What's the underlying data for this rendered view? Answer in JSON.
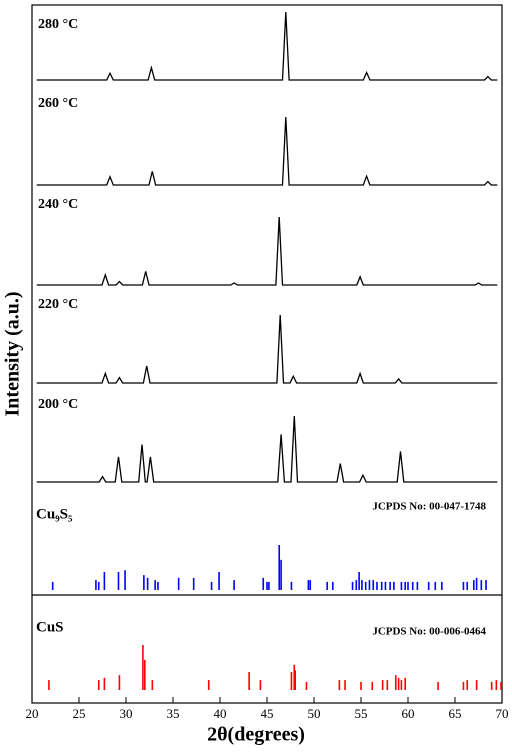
{
  "chart_data": {
    "type": "xrd",
    "xlabel": "2θ(degrees)",
    "ylabel": "Intensity (a.u.)",
    "xlim": [
      20,
      70
    ],
    "xticks": [
      20,
      25,
      30,
      35,
      40,
      45,
      50,
      55,
      60,
      65,
      70
    ],
    "series": [
      {
        "name": "280 °C",
        "color": "#000000",
        "x": [
          20.5,
          27.95,
          28.3,
          28.65,
          32.35,
          32.7,
          33.05,
          46.65,
          47.0,
          47.35,
          55.25,
          55.6,
          55.95,
          68.15,
          68.5,
          68.85,
          69.5
        ],
        "values": [
          0,
          0,
          10,
          0,
          0,
          18,
          0,
          0,
          100,
          0,
          0,
          11,
          0,
          0,
          5,
          0,
          0
        ]
      },
      {
        "name": "260 °C",
        "color": "#000000",
        "x": [
          20.5,
          27.95,
          28.3,
          28.65,
          32.45,
          32.8,
          33.15,
          46.65,
          47.0,
          47.35,
          55.25,
          55.6,
          55.95,
          68.15,
          68.5,
          68.85,
          69.5
        ],
        "values": [
          0,
          0,
          12,
          0,
          0,
          20,
          0,
          0,
          100,
          0,
          0,
          13,
          0,
          0,
          5,
          0,
          0
        ]
      },
      {
        "name": "240 °C",
        "color": "#000000",
        "x": [
          20.5,
          27.45,
          27.8,
          28.15,
          28.95,
          29.3,
          29.65,
          31.75,
          32.1,
          32.45,
          41.15,
          41.5,
          41.85,
          45.95,
          46.3,
          46.65,
          54.55,
          54.9,
          55.25,
          67.15,
          67.5,
          67.85,
          69.5
        ],
        "values": [
          0,
          0,
          15,
          0,
          0,
          5,
          0,
          0,
          20,
          0,
          0,
          3,
          0,
          0,
          100,
          0,
          0,
          12,
          0,
          0,
          3,
          0,
          0
        ]
      },
      {
        "name": "220 °C",
        "color": "#000000",
        "x": [
          20.5,
          27.45,
          27.8,
          28.15,
          28.95,
          29.3,
          29.65,
          31.85,
          32.2,
          32.55,
          46.05,
          46.4,
          46.75,
          47.45,
          47.8,
          48.15,
          54.55,
          54.9,
          55.25,
          58.65,
          59.0,
          59.35,
          69.5
        ],
        "values": [
          0,
          0,
          14,
          0,
          0,
          8,
          0,
          0,
          25,
          0,
          0,
          100,
          0,
          0,
          10,
          0,
          0,
          14,
          0,
          0,
          6,
          0,
          0
        ]
      },
      {
        "name": "200 °C",
        "color": "#000000",
        "x": [
          20.5,
          27.15,
          27.5,
          27.85,
          28.85,
          29.2,
          29.55,
          31.35,
          31.7,
          32.05,
          32.25,
          32.6,
          32.95,
          46.15,
          46.5,
          46.85,
          47.55,
          47.9,
          48.25,
          52.45,
          52.8,
          53.15,
          54.85,
          55.2,
          55.55,
          58.85,
          59.2,
          59.55,
          69.5
        ],
        "values": [
          0,
          0,
          8,
          0,
          0,
          37,
          0,
          0,
          55,
          0,
          0,
          37,
          0,
          0,
          70,
          0,
          0,
          97,
          0,
          0,
          27,
          0,
          0,
          10,
          0,
          0,
          45,
          0,
          0
        ]
      }
    ],
    "references": [
      {
        "name": "Cu₉S₅",
        "label": "JCPDS No: 00-047-1748",
        "color": "#0000ff",
        "positions": [
          22.2,
          26.8,
          27.1,
          27.7,
          29.2,
          29.9,
          31.9,
          32.3,
          33.1,
          33.4,
          35.6,
          37.2,
          39.1,
          39.9,
          41.5,
          44.6,
          45.0,
          45.2,
          46.3,
          46.5,
          47.6,
          49.4,
          49.6,
          51.4,
          52.0,
          54.1,
          54.5,
          54.8,
          55.1,
          55.5,
          55.9,
          56.3,
          56.7,
          57.2,
          57.6,
          58.1,
          58.5,
          59.3,
          59.7,
          60.0,
          60.5,
          61.0,
          62.2,
          62.9,
          63.6,
          65.9,
          66.3,
          67.0,
          67.3,
          67.8,
          68.3
        ],
        "values": [
          18,
          22,
          18,
          40,
          40,
          44,
          33,
          27,
          22,
          18,
          27,
          27,
          18,
          40,
          22,
          27,
          18,
          18,
          100,
          67,
          18,
          22,
          22,
          18,
          18,
          18,
          22,
          40,
          22,
          18,
          22,
          22,
          18,
          18,
          18,
          18,
          18,
          18,
          18,
          18,
          18,
          18,
          18,
          18,
          18,
          18,
          18,
          22,
          27,
          22,
          22
        ]
      },
      {
        "name": "CuS",
        "label": "JCPDS No: 00-006-0464",
        "color": "#ff0000",
        "positions": [
          21.8,
          27.1,
          27.7,
          29.3,
          31.8,
          32.0,
          32.8,
          38.8,
          43.1,
          44.3,
          47.6,
          47.9,
          48.0,
          49.2,
          52.7,
          53.3,
          55.0,
          56.2,
          57.3,
          57.8,
          58.7,
          59.0,
          59.3,
          59.7,
          63.2,
          65.9,
          66.3,
          67.3,
          68.9,
          69.4,
          69.9
        ],
        "values": [
          22,
          22,
          27,
          33,
          100,
          67,
          22,
          22,
          40,
          22,
          40,
          56,
          44,
          18,
          22,
          22,
          18,
          18,
          22,
          22,
          33,
          27,
          22,
          27,
          18,
          18,
          22,
          22,
          18,
          22,
          18
        ]
      }
    ]
  }
}
